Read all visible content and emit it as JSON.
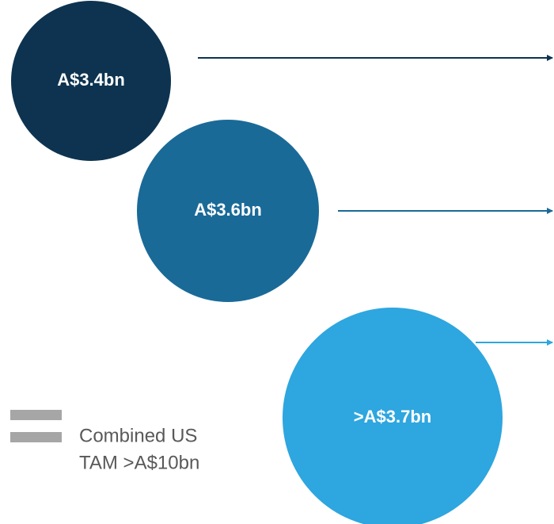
{
  "nodes": [
    {
      "label": "A$3.4bn"
    },
    {
      "label": "A$3.6bn"
    },
    {
      "label": ">A$3.7bn"
    }
  ],
  "note": {
    "lines": [
      "Combined US",
      "TAM >A$10bn"
    ]
  }
}
